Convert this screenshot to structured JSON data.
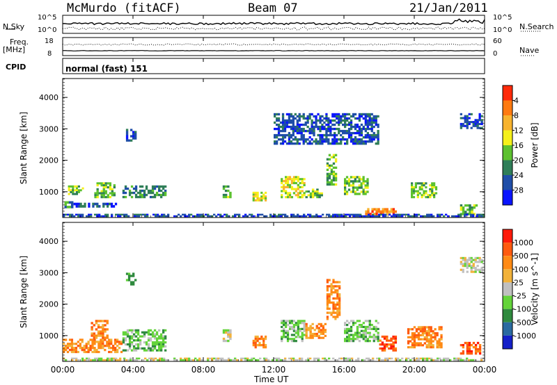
{
  "header": {
    "station": "McMurdo (fitACF)",
    "beam": "Beam 07",
    "date": "21/Jan/2011"
  },
  "noise_panel": {
    "left_label": "N.Sky",
    "right_label": "N.Search",
    "left_ticks": [
      "10^5",
      "10^0"
    ],
    "right_ticks": [
      "10^5",
      "10^0"
    ]
  },
  "freq_panel": {
    "left_label_1": "Freq.",
    "left_label_2": "[MHz]",
    "right_label": "Nave",
    "left_ticks": [
      "18",
      "8"
    ],
    "right_ticks": [
      "60",
      "0"
    ]
  },
  "cpid": {
    "label": "CPID",
    "value": "normal (fast) 151"
  },
  "chart_data": [
    {
      "type": "heatmap",
      "quantity": "Power",
      "ylabel": "Slant Range [km]",
      "xlabel": "Time UT",
      "x_ticks": [
        "00:00",
        "04:00",
        "08:00",
        "12:00",
        "16:00",
        "20:00",
        "00:00"
      ],
      "x_range_hours": [
        0,
        24
      ],
      "y_range_km": [
        180,
        4600
      ],
      "y_ticks": [
        1000,
        2000,
        3000,
        4000
      ],
      "colorbar_label": "Power [dB]",
      "colorbar_ticks": [
        "4",
        "8",
        "12",
        "16",
        "20",
        "24",
        "28"
      ],
      "colorbar_colors": [
        "#0a14ff",
        "#1f4ea8",
        "#2f7e58",
        "#5cc12f",
        "#f5f01a",
        "#f7b32e",
        "#ff7a10",
        "#ff2a0a"
      ],
      "regions": [
        {
          "t0": 0.1,
          "t1": 0.6,
          "r0": 480,
          "r1": 700,
          "level": 2
        },
        {
          "t0": 0.5,
          "t1": 3.2,
          "r0": 500,
          "r1": 650,
          "level": 1
        },
        {
          "t0": 0.3,
          "t1": 1.2,
          "r0": 900,
          "r1": 1200,
          "level": 3
        },
        {
          "t0": 1.8,
          "t1": 3.0,
          "r0": 800,
          "r1": 1300,
          "level": 3
        },
        {
          "t0": 3.4,
          "t1": 5.9,
          "r0": 800,
          "r1": 1200,
          "level": 2
        },
        {
          "t0": 3.6,
          "t1": 4.2,
          "r0": 2600,
          "r1": 3000,
          "level": 1
        },
        {
          "t0": 9.1,
          "t1": 9.6,
          "r0": 800,
          "r1": 1200,
          "level": 3
        },
        {
          "t0": 10.8,
          "t1": 11.6,
          "r0": 700,
          "r1": 1000,
          "level": 4
        },
        {
          "t0": 12.4,
          "t1": 13.8,
          "r0": 800,
          "r1": 1500,
          "level": 4
        },
        {
          "t0": 13.8,
          "t1": 14.8,
          "r0": 800,
          "r1": 1100,
          "level": 3
        },
        {
          "t0": 15.0,
          "t1": 15.6,
          "r0": 1200,
          "r1": 2200,
          "level": 3
        },
        {
          "t0": 16.0,
          "t1": 17.4,
          "r0": 900,
          "r1": 1500,
          "level": 3
        },
        {
          "t0": 17.2,
          "t1": 19.0,
          "r0": 260,
          "r1": 480,
          "level": 6
        },
        {
          "t0": 19.8,
          "t1": 21.3,
          "r0": 800,
          "r1": 1300,
          "level": 3
        },
        {
          "t0": 22.6,
          "t1": 23.6,
          "r0": 260,
          "r1": 600,
          "level": 3
        },
        {
          "t0": 12.0,
          "t1": 18.0,
          "r0": 2500,
          "r1": 3500,
          "level": 1
        },
        {
          "t0": 22.6,
          "t1": 23.9,
          "r0": 3000,
          "r1": 3500,
          "level": 1
        },
        {
          "t0": 0.0,
          "t1": 24.0,
          "r0": 200,
          "r1": 300,
          "level": 1
        }
      ]
    },
    {
      "type": "heatmap",
      "quantity": "Velocity",
      "ylabel": "Slant Range [km]",
      "xlabel": "Time UT",
      "x_ticks": [
        "00:00",
        "04:00",
        "08:00",
        "12:00",
        "16:00",
        "20:00",
        "00:00"
      ],
      "x_range_hours": [
        0,
        24
      ],
      "y_range_km": [
        180,
        4600
      ],
      "y_ticks": [
        1000,
        2000,
        3000,
        4000
      ],
      "colorbar_label": "Velocity [m s^-1]",
      "colorbar_ticks": [
        "1000",
        "500",
        "100",
        "25",
        "-25",
        "-100",
        "-500",
        "-1000"
      ],
      "colorbar_colors": [
        "#1520c8",
        "#2a6aa0",
        "#2f8a3e",
        "#64d43a",
        "#c0c0c0",
        "#f2b23a",
        "#ff8a15",
        "#ff5a0f",
        "#ff1a0a"
      ],
      "regions": [
        {
          "t0": 0.0,
          "t1": 3.4,
          "r0": 450,
          "r1": 900,
          "level": 6
        },
        {
          "t0": 1.6,
          "t1": 2.6,
          "r0": 900,
          "r1": 1500,
          "level": 6
        },
        {
          "t0": 3.4,
          "t1": 5.9,
          "r0": 500,
          "r1": 1200,
          "level": 3
        },
        {
          "t0": 3.6,
          "t1": 4.2,
          "r0": 2600,
          "r1": 3000,
          "level": 2
        },
        {
          "t0": 9.1,
          "t1": 9.6,
          "r0": 800,
          "r1": 1200,
          "level": 4
        },
        {
          "t0": 10.8,
          "t1": 11.6,
          "r0": 600,
          "r1": 1000,
          "level": 6
        },
        {
          "t0": 12.4,
          "t1": 13.8,
          "r0": 800,
          "r1": 1500,
          "level": 3
        },
        {
          "t0": 13.8,
          "t1": 15.0,
          "r0": 900,
          "r1": 1400,
          "level": 6
        },
        {
          "t0": 15.0,
          "t1": 15.8,
          "r0": 1500,
          "r1": 2800,
          "level": 6
        },
        {
          "t0": 16.0,
          "t1": 18.0,
          "r0": 800,
          "r1": 1500,
          "level": 3
        },
        {
          "t0": 18.0,
          "t1": 19.0,
          "r0": 500,
          "r1": 1000,
          "level": 7
        },
        {
          "t0": 19.6,
          "t1": 21.6,
          "r0": 600,
          "r1": 1300,
          "level": 6
        },
        {
          "t0": 22.6,
          "t1": 23.8,
          "r0": 400,
          "r1": 800,
          "level": 7
        },
        {
          "t0": 22.6,
          "t1": 23.9,
          "r0": 3000,
          "r1": 3500,
          "level": 4
        },
        {
          "t0": 0.0,
          "t1": 24.0,
          "r0": 200,
          "r1": 300,
          "level": 4
        }
      ]
    }
  ]
}
